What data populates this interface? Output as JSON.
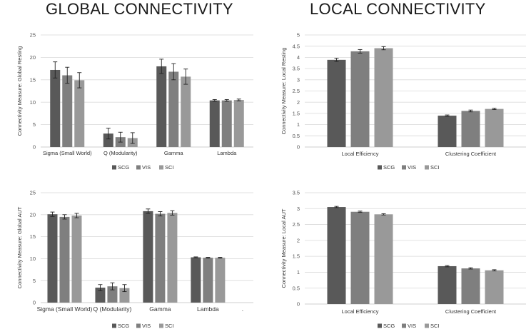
{
  "headings": {
    "global": "GLOBAL CONNECTIVITY",
    "local": "LOCAL CONNECTIVITY"
  },
  "colors": {
    "SCG": "#595959",
    "VIS": "#7f7f7f",
    "SCI": "#999999"
  },
  "chart_data": [
    {
      "type": "bar",
      "panel": "top-left",
      "ylabel": "Connectivity Measure: Global Resting",
      "ylim": [
        0,
        25
      ],
      "yticks": [
        0,
        5,
        10,
        15,
        20,
        25
      ],
      "grid": true,
      "legend_position": "bottom",
      "categories": [
        "Sigma (Small World)",
        "Q (Modularity)",
        "Gamma",
        "Lambda"
      ],
      "series": [
        {
          "name": "SCG",
          "values": [
            17.2,
            3.0,
            18.0,
            10.4
          ],
          "errors": [
            1.8,
            1.2,
            1.6,
            0.2
          ]
        },
        {
          "name": "VIS",
          "values": [
            16.0,
            2.2,
            16.8,
            10.4
          ],
          "errors": [
            1.8,
            1.1,
            1.8,
            0.2
          ]
        },
        {
          "name": "SCI",
          "values": [
            14.9,
            2.0,
            15.7,
            10.5
          ],
          "errors": [
            1.7,
            1.2,
            1.7,
            0.2
          ]
        }
      ]
    },
    {
      "type": "bar",
      "panel": "top-right",
      "ylabel": "Connectivity Measure: Local Resting",
      "ylim": [
        0,
        5
      ],
      "yticks": [
        0,
        0.5,
        1,
        1.5,
        2,
        2.5,
        3,
        3.5,
        4,
        4.5,
        5
      ],
      "grid": true,
      "legend_position": "bottom",
      "categories": [
        "Local Efficiency",
        "Clustering Coefficient"
      ],
      "series": [
        {
          "name": "SCG",
          "values": [
            3.89,
            1.4
          ],
          "errors": [
            0.07,
            0.03
          ]
        },
        {
          "name": "VIS",
          "values": [
            4.27,
            1.61
          ],
          "errors": [
            0.08,
            0.04
          ]
        },
        {
          "name": "SCI",
          "values": [
            4.41,
            1.7
          ],
          "errors": [
            0.07,
            0.03
          ]
        }
      ]
    },
    {
      "type": "bar",
      "panel": "bottom-left",
      "ylabel": "Connectivity Measure: Global AUT",
      "ylim": [
        0,
        25
      ],
      "yticks": [
        0,
        5,
        10,
        15,
        20,
        25
      ],
      "grid": true,
      "legend_position": "bottom",
      "categories": [
        "Sigma (Small World)",
        "Q (Modularity)",
        "Gamma",
        "Lambda",
        "."
      ],
      "series": [
        {
          "name": "SCG",
          "values": [
            20.1,
            3.4,
            20.8,
            10.3,
            null
          ],
          "errors": [
            0.5,
            0.7,
            0.5,
            0.1,
            null
          ]
        },
        {
          "name": "VIS",
          "values": [
            19.5,
            3.7,
            20.2,
            10.2,
            null
          ],
          "errors": [
            0.5,
            0.8,
            0.5,
            0.1,
            null
          ]
        },
        {
          "name": "SCI",
          "values": [
            19.8,
            3.3,
            20.4,
            10.2,
            null
          ],
          "errors": [
            0.5,
            0.8,
            0.5,
            0.1,
            null
          ]
        }
      ]
    },
    {
      "type": "bar",
      "panel": "bottom-right",
      "ylabel": "Connectivity Measure: Local AUT",
      "ylim": [
        0,
        3.5
      ],
      "yticks": [
        0,
        0.5,
        1,
        1.5,
        2,
        2.5,
        3,
        3.5
      ],
      "grid": true,
      "legend_position": "bottom",
      "categories": [
        "Local Efficiency",
        "Clustering Coefficient"
      ],
      "series": [
        {
          "name": "SCG",
          "values": [
            3.05,
            1.19
          ],
          "errors": [
            0.02,
            0.02
          ]
        },
        {
          "name": "VIS",
          "values": [
            2.9,
            1.12
          ],
          "errors": [
            0.02,
            0.02
          ]
        },
        {
          "name": "SCI",
          "values": [
            2.82,
            1.06
          ],
          "errors": [
            0.02,
            0.02
          ]
        }
      ]
    }
  ]
}
